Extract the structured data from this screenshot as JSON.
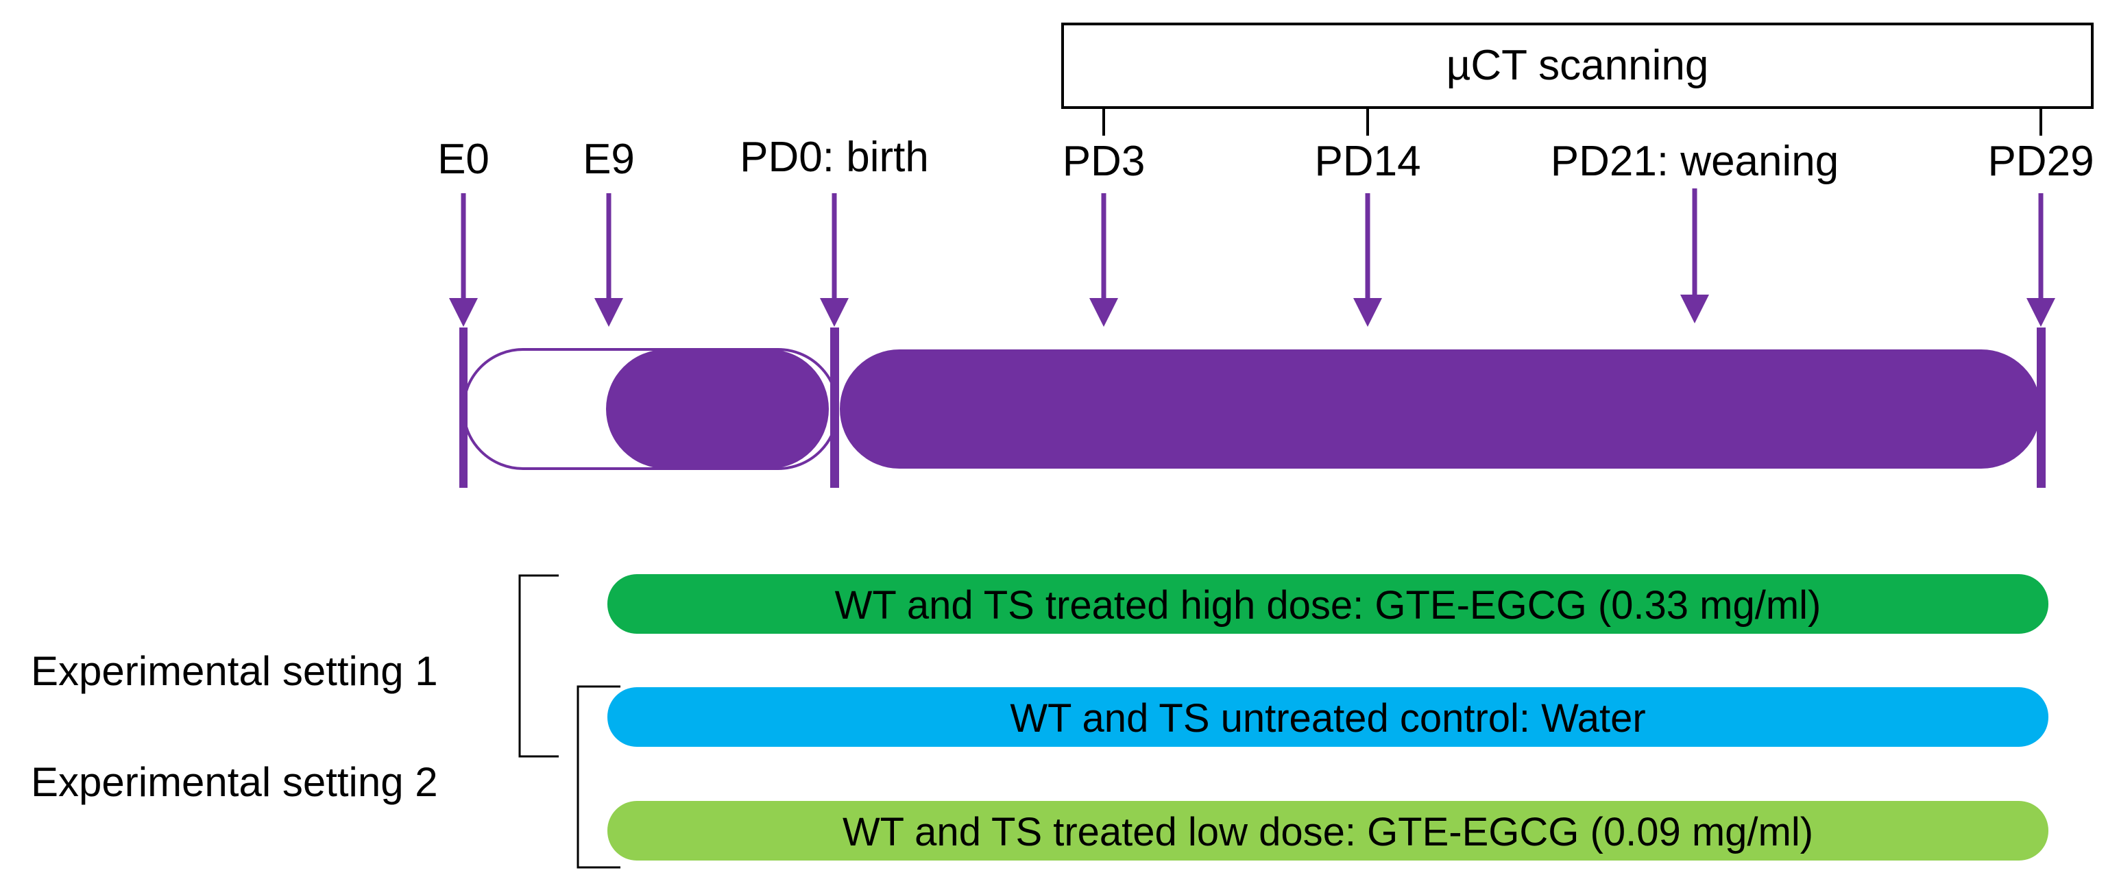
{
  "colors": {
    "timeline": "#7030A0",
    "high_dose": "#0DAF4D",
    "control": "#00B0F0",
    "low_dose": "#92D050",
    "bracket": "#000000",
    "text": "#000000",
    "box_border": "#000000"
  },
  "scan_box": {
    "label": "µCT scanning"
  },
  "timepoints": {
    "e0": "E0",
    "e9": "E9",
    "pd0": "PD0: birth",
    "pd3": "PD3",
    "pd14": "PD14",
    "pd21": "PD21: weaning",
    "pd29": "PD29"
  },
  "treatments": {
    "high": "WT and TS treated high dose: GTE-EGCG (0.33 mg/ml)",
    "control": "WT and TS untreated control: Water",
    "low": "WT and TS treated low dose: GTE-EGCG (0.09 mg/ml)"
  },
  "settings": {
    "setting1": "Experimental setting 1",
    "setting2": "Experimental setting 2"
  }
}
